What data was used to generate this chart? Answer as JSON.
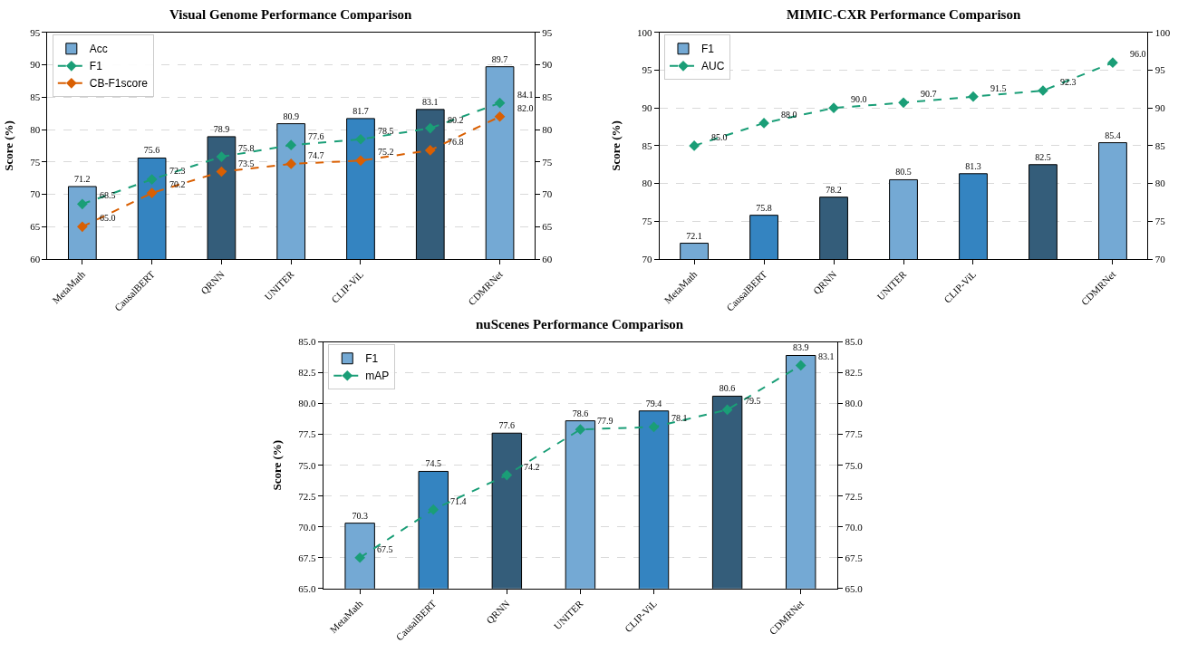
{
  "chart_data": [
    {
      "type": "bar",
      "title": "Visual Genome Performance Comparison",
      "ylabel": "Score (%)",
      "categories": [
        "MetaMath",
        "CausalBERT",
        "QRNN",
        "UNITER",
        "CLIP-ViL",
        null,
        "CDMRNet"
      ],
      "ylim": [
        60,
        95
      ],
      "yticks": [
        60,
        65,
        70,
        75,
        80,
        85,
        90,
        95
      ],
      "y2lim": [
        60,
        95
      ],
      "y2ticks": [
        60,
        65,
        70,
        75,
        80,
        85,
        90,
        95
      ],
      "grid": "y",
      "legend": "top left",
      "marker": "diamond",
      "line_style": "dashed",
      "series": [
        {
          "name": "Acc",
          "colors": [
            "#74a9d4",
            "#3484c1",
            "#345d7a",
            "#74a9d4",
            "#3484c1",
            "#345d7a",
            "#74a9d4"
          ],
          "values": [
            71.2,
            75.6,
            78.9,
            80.9,
            81.7,
            83.1,
            89.7
          ],
          "value_labels": [
            "71.2",
            "75.6",
            "78.9",
            "80.9",
            "81.7",
            "83.1",
            "89.7"
          ]
        },
        {
          "name": "F1",
          "type": "line",
          "axis": "y2",
          "color": "#1a9e77",
          "values": [
            68.5,
            72.3,
            75.8,
            77.6,
            78.5,
            80.2,
            84.1
          ],
          "value_labels": [
            "68.5",
            "72.3",
            "75.8",
            "77.6",
            "78.5",
            "80.2",
            "84.1"
          ]
        },
        {
          "name": "CB-F1score",
          "type": "line",
          "axis": "y2",
          "color": "#d95f02",
          "values": [
            65.0,
            70.2,
            73.5,
            74.7,
            75.2,
            76.8,
            82.0
          ],
          "value_labels": [
            "65.0",
            "70.2",
            "73.5",
            "74.7",
            "75.2",
            "76.8",
            "82.0"
          ]
        }
      ]
    },
    {
      "type": "bar",
      "title": "MIMIC-CXR Performance Comparison",
      "ylabel": "Score (%)",
      "categories": [
        "MetaMath",
        "CausalBERT",
        "QRNN",
        "UNITER",
        "CLIP-ViL",
        null,
        "CDMRNet"
      ],
      "ylim": [
        70,
        100
      ],
      "yticks": [
        70,
        75,
        80,
        85,
        90,
        95,
        100
      ],
      "y2lim": [
        70,
        100
      ],
      "y2ticks": [
        70,
        75,
        80,
        85,
        90,
        95,
        100
      ],
      "grid": "y",
      "legend": "top left",
      "marker": "diamond",
      "line_style": "dashed",
      "series": [
        {
          "name": "F1",
          "colors": [
            "#74a9d4",
            "#3484c1",
            "#345d7a",
            "#74a9d4",
            "#3484c1",
            "#345d7a",
            "#74a9d4"
          ],
          "values": [
            72.1,
            75.8,
            78.2,
            80.5,
            81.3,
            82.5,
            85.4
          ],
          "value_labels": [
            "72.1",
            "75.8",
            "78.2",
            "80.5",
            "81.3",
            "82.5",
            "85.4"
          ]
        },
        {
          "name": "AUC",
          "type": "line",
          "axis": "y2",
          "color": "#1a9e77",
          "values": [
            85.0,
            88.0,
            90.0,
            90.7,
            91.5,
            92.3,
            96.0
          ],
          "value_labels": [
            "85.0",
            "88.0",
            "90.0",
            "90.7",
            "91.5",
            "92.3",
            "96.0"
          ]
        }
      ]
    },
    {
      "type": "bar",
      "title": "nuScenes Performance Comparison",
      "ylabel": "Score (%)",
      "categories": [
        "MetaMath",
        "CausalBERT",
        "QRNN",
        "UNITER",
        "CLIP-ViL",
        null,
        "CDMRNet"
      ],
      "ylim": [
        65,
        85
      ],
      "yticks": [
        {
          "value": 65,
          "label": "65.0"
        },
        {
          "value": 67.5,
          "label": "67.5"
        },
        {
          "value": 70,
          "label": "70.0"
        },
        {
          "value": 72.5,
          "label": "72.5"
        },
        {
          "value": 75,
          "label": "75.0"
        },
        {
          "value": 77.5,
          "label": "77.5"
        },
        {
          "value": 80,
          "label": "80.0"
        },
        {
          "value": 82.5,
          "label": "82.5"
        },
        {
          "value": 85,
          "label": "85.0"
        }
      ],
      "y2lim": [
        65,
        85
      ],
      "y2ticks": [
        {
          "value": 65,
          "label": "65.0"
        },
        {
          "value": 67.5,
          "label": "67.5"
        },
        {
          "value": 70,
          "label": "70.0"
        },
        {
          "value": 72.5,
          "label": "72.5"
        },
        {
          "value": 75,
          "label": "75.0"
        },
        {
          "value": 77.5,
          "label": "77.5"
        },
        {
          "value": 80,
          "label": "80.0"
        },
        {
          "value": 82.5,
          "label": "82.5"
        },
        {
          "value": 85,
          "label": "85.0"
        }
      ],
      "grid": "y",
      "legend": "top left",
      "marker": "diamond",
      "line_style": "dashed",
      "series": [
        {
          "name": "F1",
          "colors": [
            "#74a9d4",
            "#3484c1",
            "#345d7a",
            "#74a9d4",
            "#3484c1",
            "#345d7a",
            "#74a9d4"
          ],
          "values": [
            70.3,
            74.5,
            77.6,
            78.6,
            79.4,
            80.6,
            83.9
          ],
          "value_labels": [
            "70.3",
            "74.5",
            "77.6",
            "78.6",
            "79.4",
            "80.6",
            "83.9"
          ]
        },
        {
          "name": "mAP",
          "type": "line",
          "axis": "y2",
          "color": "#1a9e77",
          "values": [
            67.5,
            71.4,
            74.2,
            77.9,
            78.1,
            79.5,
            83.1
          ],
          "value_labels": [
            "67.5",
            "71.4",
            "74.2",
            "77.9",
            "78.1",
            "79.5",
            "83.1"
          ]
        }
      ]
    }
  ]
}
